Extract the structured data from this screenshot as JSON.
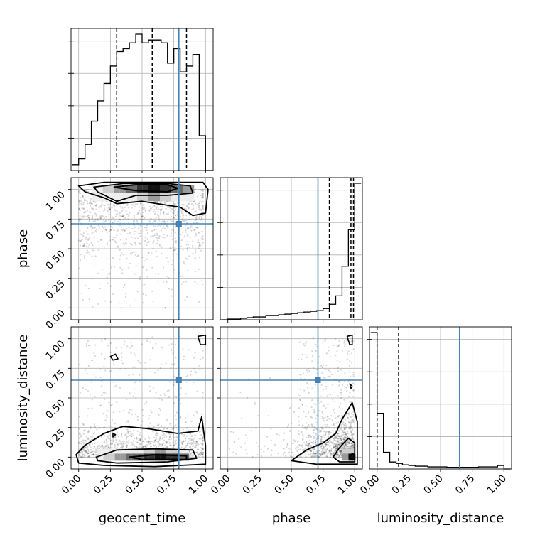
{
  "chart_data": {
    "type": "corner",
    "parameters": [
      "geocent_time",
      "phase",
      "luminosity_distance"
    ],
    "axis_labels": {
      "geocent_time": "geocent_time",
      "phase": "phase",
      "luminosity_distance": "luminosity_distance"
    },
    "ticks": {
      "geocent_time": [
        "0.00",
        "0.25",
        "0.50",
        "0.75",
        "1.00"
      ],
      "phase": [
        "0.00",
        "0.25",
        "0.50",
        "0.75",
        "1.00"
      ],
      "luminosity_distance": [
        "0.00",
        "0.25",
        "0.50",
        "0.75",
        "1.00"
      ]
    },
    "xlim": {
      "geocent_time": [
        -0.06,
        1.06
      ],
      "phase": [
        -0.06,
        1.06
      ],
      "luminosity_distance": [
        -0.06,
        1.06
      ]
    },
    "ylim_2d": {
      "phase": [
        -0.1,
        1.1
      ],
      "luminosity_distance": [
        -0.1,
        1.1
      ]
    },
    "truths": {
      "geocent_time": 0.79,
      "phase": 0.71,
      "luminosity_distance": 0.65
    },
    "quantiles": {
      "geocent_time": [
        0.3,
        0.58,
        0.85
      ],
      "phase": [
        0.8,
        0.97,
        0.99
      ],
      "luminosity_distance": [
        0.0,
        0.17
      ]
    },
    "histograms": {
      "geocent_time": {
        "edges": [
          -0.05,
          0.0,
          0.05,
          0.1,
          0.15,
          0.2,
          0.25,
          0.3,
          0.35,
          0.4,
          0.45,
          0.5,
          0.55,
          0.6,
          0.65,
          0.7,
          0.75,
          0.8,
          0.85,
          0.9,
          0.95,
          1.0,
          1.05
        ],
        "counts": [
          2,
          4,
          9,
          17,
          24,
          30,
          36,
          41,
          42,
          44,
          47,
          44,
          45,
          45,
          44,
          37,
          42,
          34,
          36,
          40,
          12,
          0
        ]
      },
      "phase": {
        "edges": [
          -0.05,
          0.0,
          0.05,
          0.1,
          0.15,
          0.2,
          0.25,
          0.3,
          0.35,
          0.4,
          0.45,
          0.5,
          0.55,
          0.6,
          0.65,
          0.7,
          0.75,
          0.8,
          0.85,
          0.9,
          0.95,
          1.0,
          1.05
        ],
        "counts": [
          0,
          0.5,
          0.5,
          1,
          1.5,
          2,
          2,
          3,
          3,
          3.5,
          4,
          4.5,
          5,
          5.5,
          6,
          6.5,
          8,
          11,
          17,
          38,
          64,
          97
        ]
      },
      "luminosity_distance": {
        "edges": [
          -0.05,
          0.0,
          0.05,
          0.1,
          0.15,
          0.2,
          0.25,
          0.3,
          0.35,
          0.4,
          0.45,
          0.5,
          0.55,
          0.6,
          0.65,
          0.7,
          0.75,
          0.8,
          0.85,
          0.9,
          0.95,
          1.0,
          1.05
        ],
        "counts": [
          98,
          40,
          12,
          5,
          4,
          3,
          2.5,
          2,
          2,
          1.5,
          1.5,
          1.5,
          1.2,
          1.2,
          1.2,
          1.2,
          1.2,
          1.5,
          1.5,
          1.5,
          2.5,
          0
        ]
      }
    },
    "grid": true
  }
}
